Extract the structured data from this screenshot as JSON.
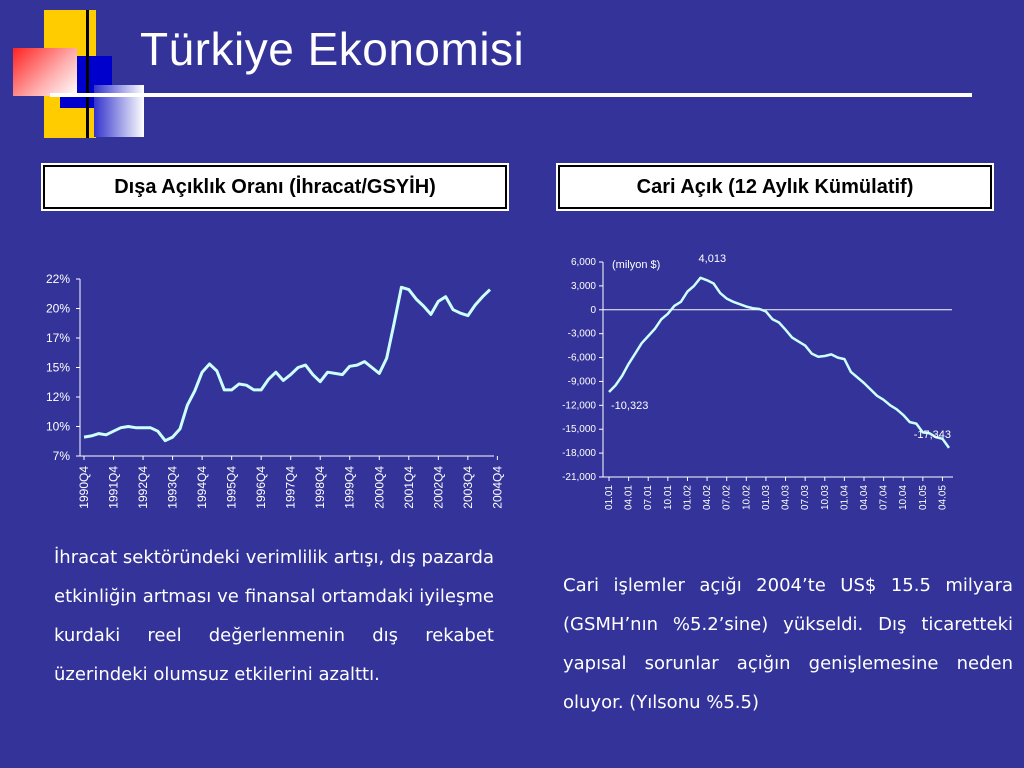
{
  "title": "Türkiye Ekonomisi",
  "colors": {
    "background": "#333399",
    "line": "#ccffff",
    "accent_yellow": "#ffcc00",
    "accent_red": "#ff3333",
    "accent_blue": "#0000cc"
  },
  "left_panel": {
    "title": "Dışa Açıklık Oranı (İhracat/GSYİH)",
    "text": "İhracat sektöründeki verimlilik artışı, dış pazarda etkinliğin artması ve finansal ortamdaki iyileşme kurdaki reel değerlenmenin dış rekabet üzerindeki olumsuz etkilerini azalttı."
  },
  "right_panel": {
    "title": "Cari Açık (12 Aylık Kümülatif)",
    "text": "Cari işlemler açığı 2004’te US$ 15.5 milyara (GSMH’nın %5.2’sine) yükseldi. Dış ticaretteki yapısal sorunlar açığın genişlemesine neden oluyor. (Yılsonu %5.5)"
  },
  "chart_data": [
    {
      "type": "line",
      "title": "Dışa Açıklık Oranı (İhracat/GSYİH)",
      "xlabel": "",
      "ylabel": "",
      "y_tick_labels": [
        "7%",
        "10%",
        "12%",
        "15%",
        "17%",
        "20%",
        "22%"
      ],
      "y_ticks": [
        7.5,
        10,
        12.5,
        15,
        17.5,
        20,
        22.5
      ],
      "ylim": [
        7.5,
        22.5
      ],
      "x_tick_labels": [
        "1990Q4",
        "1991Q4",
        "1992Q4",
        "1993Q4",
        "1994Q4",
        "1995Q4",
        "1996Q4",
        "1997Q4",
        "1998Q4",
        "1999Q4",
        "2000Q4",
        "2001Q4",
        "2002Q4",
        "2003Q4",
        "2004Q4"
      ],
      "x_tick_index": [
        0,
        4,
        8,
        12,
        16,
        20,
        24,
        28,
        32,
        36,
        40,
        44,
        48,
        52,
        56
      ],
      "values": [
        9.1,
        9.2,
        9.4,
        9.3,
        9.6,
        9.9,
        10.0,
        9.9,
        9.9,
        9.9,
        9.6,
        8.8,
        9.1,
        9.8,
        11.8,
        13.0,
        14.6,
        15.3,
        14.7,
        13.1,
        13.1,
        13.6,
        13.5,
        13.1,
        13.1,
        14.0,
        14.6,
        13.9,
        14.4,
        15.0,
        15.2,
        14.4,
        13.8,
        14.6,
        14.5,
        14.4,
        15.1,
        15.2,
        15.5,
        15.0,
        14.5,
        15.8,
        18.7,
        21.8,
        21.6,
        20.8,
        20.2,
        19.5,
        20.6,
        21.0,
        19.9,
        19.6,
        19.4,
        20.3,
        21.0,
        21.6
      ],
      "grid": false,
      "legend": "none"
    },
    {
      "type": "line",
      "title": "Cari Açık (12 Aylık Kümülatif)",
      "unit_label": "(milyon $)",
      "xlabel": "",
      "ylabel": "",
      "y_tick_labels": [
        "6,000",
        "3,000",
        "0",
        "-3,000",
        "-6,000",
        "-9,000",
        "-12,000",
        "-15,000",
        "-18,000",
        "-21,000"
      ],
      "y_ticks": [
        6000,
        3000,
        0,
        -3000,
        -6000,
        -9000,
        -12000,
        -15000,
        -18000,
        -21000
      ],
      "ylim": [
        -21000,
        6000
      ],
      "x_tick_labels": [
        "01.01",
        "04.01",
        "07.01",
        "10.01",
        "01.02",
        "04.02",
        "07.02",
        "10.02",
        "01.03",
        "04.03",
        "07.03",
        "10.03",
        "01.04",
        "04.04",
        "07.04",
        "10.04",
        "01.05",
        "04.05"
      ],
      "x_tick_index": [
        0,
        3,
        6,
        9,
        12,
        15,
        18,
        21,
        24,
        27,
        30,
        33,
        36,
        39,
        42,
        45,
        48,
        51
      ],
      "values": [
        -10323,
        -9500,
        -8300,
        -6800,
        -5500,
        -4200,
        -3300,
        -2400,
        -1200,
        -500,
        500,
        1000,
        2300,
        3000,
        4013,
        3700,
        3300,
        2100,
        1400,
        1000,
        700,
        400,
        200,
        100,
        -200,
        -1200,
        -1600,
        -2500,
        -3500,
        -4000,
        -4500,
        -5500,
        -5900,
        -5800,
        -5600,
        -6000,
        -6200,
        -7800,
        -8500,
        -9200,
        -10000,
        -10800,
        -11300,
        -12000,
        -12500,
        -13200,
        -14100,
        -14300,
        -15400,
        -15500,
        -16000,
        -16200,
        -17343
      ],
      "data_labels": [
        {
          "index": 0,
          "text": "-10,323"
        },
        {
          "index": 14,
          "text": "4,013"
        },
        {
          "index": 52,
          "text": "-17,343"
        }
      ],
      "grid": false,
      "legend": "none"
    }
  ]
}
